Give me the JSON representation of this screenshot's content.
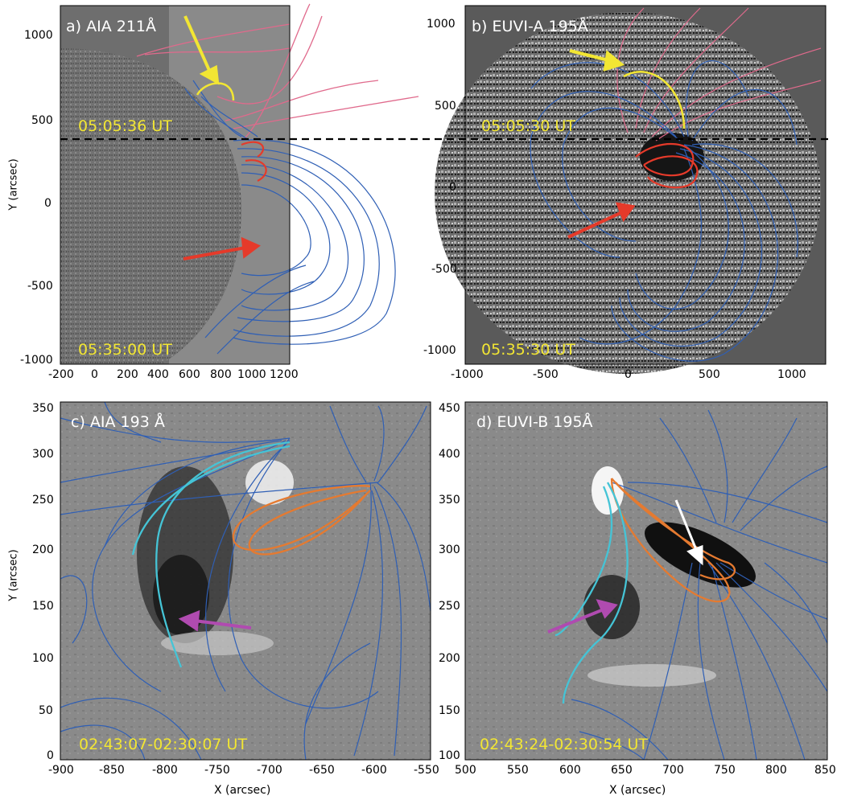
{
  "panels": {
    "a": {
      "label": "a) AIA 211Å",
      "time_top": "05:05:36 UT",
      "time_bottom": "05:35:00 UT",
      "xticks": [
        "-200",
        "0",
        "200",
        "400",
        "600",
        "800",
        "1000",
        "1200"
      ],
      "yticks": [
        "1000",
        "500",
        "0",
        "-500",
        "-1000"
      ],
      "ylabel": "Y (arcsec)"
    },
    "b": {
      "label": "b) EUVI-A 195Å",
      "time_top": "05:05:30 UT",
      "time_bottom": "05:35:30 UT",
      "xticks": [
        "-1000",
        "-500",
        "0",
        "500",
        "1000"
      ],
      "yticks": [
        "1000",
        "500",
        "0",
        "-500",
        "-1000"
      ]
    },
    "c": {
      "label": "c) AIA 193 Å",
      "time_bottom": "02:43:07-02:30:07 UT",
      "xticks": [
        "-900",
        "-850",
        "-800",
        "-750",
        "-700",
        "-650",
        "-600",
        "-550"
      ],
      "yticks": [
        "350",
        "300",
        "250",
        "200",
        "150",
        "100",
        "50",
        "0"
      ],
      "xlabel": "X (arcsec)",
      "ylabel": "Y (arcsec)"
    },
    "d": {
      "label": "d) EUVI-B 195Å",
      "time_bottom": "02:43:24-02:30:54 UT",
      "xticks": [
        "500",
        "550",
        "600",
        "650",
        "700",
        "750",
        "800",
        "850"
      ],
      "yticks": [
        "450",
        "400",
        "350",
        "300",
        "250",
        "200",
        "150",
        "100"
      ],
      "xlabel": "X (arcsec)"
    }
  },
  "colors": {
    "field_lines": "#2f5fb5",
    "open_lines": "#e06a8c",
    "yellow": "#f2e633",
    "red": "#e53a2a",
    "cyan": "#45c4d6",
    "orange": "#e57a30",
    "purple": "#b04bb0"
  }
}
